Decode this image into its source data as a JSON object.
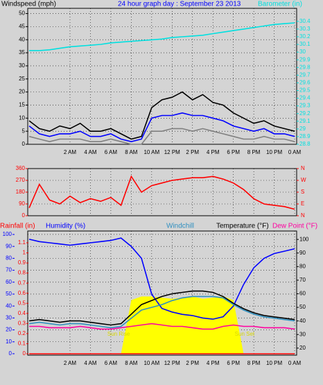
{
  "chart_data": [
    {
      "type": "line",
      "title": "24 hour graph day : September 23 2013",
      "ylabel": "Windspeed (mph)",
      "y2label": "Barometer (in)",
      "x": [
        -2,
        -1,
        0,
        1,
        2,
        3,
        4,
        5,
        6,
        7,
        8,
        9,
        10,
        11,
        12,
        13,
        14,
        15,
        16,
        17,
        18,
        19,
        20,
        21,
        22,
        23,
        24
      ],
      "xlim": [
        -2.14,
        24.2
      ],
      "xticks": [
        {
          "value": 2,
          "label": "2 AM"
        },
        {
          "value": 4,
          "label": "4 AM"
        },
        {
          "value": 6,
          "label": "6 AM"
        },
        {
          "value": 8,
          "label": "8 AM"
        },
        {
          "value": 10,
          "label": "10 AM"
        },
        {
          "value": 12,
          "label": "12 PM"
        },
        {
          "value": 14,
          "label": "2 PM"
        },
        {
          "value": 16,
          "label": "4 PM"
        },
        {
          "value": 18,
          "label": "6 PM"
        },
        {
          "value": 20,
          "label": "8 PM"
        },
        {
          "value": 22,
          "label": "10 PM"
        },
        {
          "value": 24,
          "label": "0 AM"
        }
      ],
      "ylim": [
        0,
        52
      ],
      "yticks": [
        0,
        5,
        10,
        15,
        20,
        25,
        30,
        35,
        40,
        45,
        50
      ],
      "y2lim": [
        28.8,
        30.57
      ],
      "y2ticks": [
        28.8,
        28.9,
        29,
        29.1,
        29.2,
        29.3,
        29.4,
        29.5,
        29.6,
        29.7,
        29.8,
        29.9,
        30,
        30.1,
        30.2,
        30.3,
        30.4
      ],
      "grid": true,
      "series": [
        {
          "color": "#808080",
          "values": [
            3,
            2,
            1,
            2,
            2,
            2,
            1,
            1,
            2,
            1,
            0,
            0,
            5,
            5,
            6,
            6,
            5,
            6,
            5,
            4,
            3,
            2,
            2,
            3,
            2,
            2,
            1
          ]
        },
        {
          "color": "#000000",
          "values": [
            9,
            6,
            5,
            7,
            6,
            8,
            5,
            5,
            6,
            4,
            2,
            3,
            14,
            17,
            18,
            20,
            17,
            19,
            16,
            15,
            12,
            10,
            8,
            9,
            7,
            6,
            5
          ]
        },
        {
          "color": "#0000ff",
          "values": [
            7,
            4,
            3,
            4,
            4,
            5,
            3,
            3,
            4,
            2,
            1,
            2,
            10,
            11,
            11,
            12,
            11,
            11,
            10,
            9,
            7,
            6,
            5,
            6,
            4,
            4,
            3
          ]
        },
        {
          "color": "#00e0e0",
          "axis": "y2",
          "values": [
            30.02,
            30.02,
            30.03,
            30.05,
            30.07,
            30.08,
            30.09,
            30.1,
            30.12,
            30.13,
            30.14,
            30.15,
            30.16,
            30.17,
            30.19,
            30.2,
            30.21,
            30.22,
            30.24,
            30.26,
            30.28,
            30.3,
            30.32,
            30.34,
            30.36,
            30.37,
            30.38
          ]
        }
      ]
    },
    {
      "type": "line",
      "x": [
        -2,
        -1,
        0,
        1,
        2,
        3,
        4,
        5,
        6,
        7,
        8,
        9,
        10,
        11,
        12,
        13,
        14,
        15,
        16,
        17,
        18,
        19,
        20,
        21,
        22,
        23,
        24
      ],
      "xlim": [
        -2.14,
        24.2
      ],
      "ylim": [
        0,
        360
      ],
      "yticks": [
        0,
        90,
        180,
        270,
        360
      ],
      "y2lim": [
        0,
        360
      ],
      "y2ticks": [
        {
          "value": 0,
          "label": "N"
        },
        {
          "value": 90,
          "label": "E"
        },
        {
          "value": 180,
          "label": "S"
        },
        {
          "value": 270,
          "label": "W"
        },
        {
          "value": 360,
          "label": "N"
        }
      ],
      "grid": true,
      "series": [
        {
          "color": "#ff0000",
          "values": [
            60,
            240,
            120,
            90,
            150,
            100,
            130,
            110,
            140,
            80,
            300,
            180,
            230,
            250,
            270,
            280,
            290,
            290,
            300,
            280,
            250,
            200,
            130,
            90,
            80,
            70,
            50
          ]
        }
      ]
    },
    {
      "type": "line",
      "ylabel": "Humidity (%)",
      "y3label": "Rainfall (in)",
      "y2label": "Temperature (°F)",
      "x": [
        -2,
        -1,
        0,
        1,
        2,
        3,
        4,
        5,
        6,
        7,
        8,
        9,
        10,
        11,
        12,
        13,
        14,
        15,
        16,
        17,
        18,
        19,
        20,
        21,
        22,
        23,
        24
      ],
      "xlim": [
        -2.14,
        24.2
      ],
      "xticks": [
        {
          "value": 2,
          "label": "2 AM"
        },
        {
          "value": 4,
          "label": "4 AM"
        },
        {
          "value": 6,
          "label": "6 AM"
        },
        {
          "value": 8,
          "label": "8 AM"
        },
        {
          "value": 10,
          "label": "10 AM"
        },
        {
          "value": 12,
          "label": "12 PM"
        },
        {
          "value": 14,
          "label": "2 PM"
        },
        {
          "value": 16,
          "label": "4 PM"
        },
        {
          "value": 18,
          "label": "6 PM"
        },
        {
          "value": 20,
          "label": "8 PM"
        },
        {
          "value": 22,
          "label": "10 PM"
        },
        {
          "value": 24,
          "label": "0 AM"
        }
      ],
      "ylim": [
        -1.2,
        102.9
      ],
      "yticks": [
        0,
        10,
        20,
        30,
        40,
        50,
        60,
        70,
        80,
        90,
        100
      ],
      "y3lim": [
        -0.014,
        1.217
      ],
      "y3ticks": [
        0,
        0.1,
        0.2,
        0.3,
        0.4,
        0.5,
        0.6,
        0.7,
        0.8,
        0.9,
        1,
        1.1
      ],
      "y2lim": [
        14.8,
        106.2
      ],
      "y2ticks": [
        20,
        30,
        40,
        50,
        60,
        70,
        80,
        90,
        100
      ],
      "grid": true,
      "annotations": [
        "Sun Rise",
        "Sun Set"
      ],
      "series": [
        {
          "type": "area",
          "color": "#ffff00",
          "values": [
            0,
            0,
            0,
            0,
            0,
            0,
            0,
            0,
            0,
            0,
            45,
            48,
            48,
            47,
            46,
            47,
            48,
            46,
            47,
            48,
            45,
            0,
            0,
            0,
            0,
            0,
            0
          ]
        },
        {
          "color": "#0000ff",
          "values": [
            96,
            94,
            93,
            92,
            91,
            92,
            93,
            94,
            95,
            97,
            90,
            80,
            50,
            38,
            35,
            33,
            32,
            30,
            29,
            31,
            40,
            58,
            72,
            80,
            84,
            86,
            88
          ]
        },
        {
          "color": "#ff0000",
          "axis": "y3",
          "values": [
            0,
            0,
            0,
            0,
            0,
            0,
            0,
            0,
            0,
            0,
            0,
            0,
            0,
            0,
            0,
            0,
            0,
            0,
            0,
            0,
            0,
            0,
            0,
            0,
            0,
            0,
            0
          ]
        },
        {
          "color": "#000000",
          "axis": "y2",
          "values": [
            40,
            41,
            40,
            39,
            40,
            40,
            39,
            38,
            37,
            38,
            45,
            52,
            55,
            58,
            60,
            61,
            62,
            62,
            61,
            58,
            53,
            49,
            46,
            44,
            43,
            42,
            41
          ]
        },
        {
          "name": "Windchill",
          "color": "#3090c0",
          "axis": "y2",
          "values": [
            38,
            39,
            38,
            37,
            38,
            38,
            37,
            36,
            35,
            36,
            42,
            48,
            50,
            52,
            55,
            57,
            58,
            58,
            58,
            57,
            52,
            48,
            45,
            43,
            42,
            41,
            40
          ]
        },
        {
          "name": "Dew Point (°F)",
          "color": "#ff00a0",
          "axis": "y2",
          "values": [
            36,
            36,
            35,
            35,
            35,
            36,
            35,
            34,
            34,
            35,
            36,
            37,
            38,
            37,
            36,
            36,
            35,
            34,
            34,
            36,
            37,
            36,
            36,
            35,
            35,
            35,
            34
          ]
        }
      ]
    }
  ]
}
